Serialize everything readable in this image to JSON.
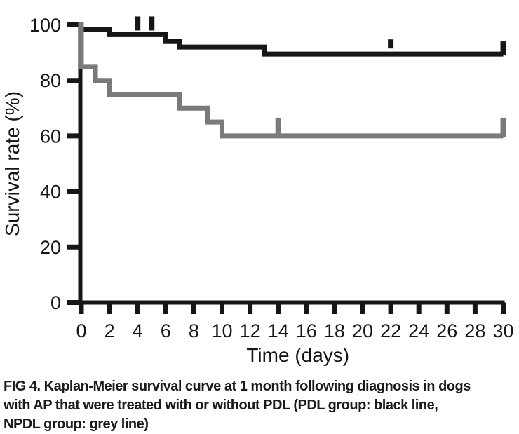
{
  "figure": {
    "caption_lines": [
      "FIG 4. Kaplan-Meier survival curve at 1 month following diagnosis in dogs",
      "with AP that were treated with or without PDL (PDL group: black line,",
      "NPDL group: grey line)"
    ]
  },
  "chart_data": {
    "type": "line",
    "variant": "kaplan_meier_step",
    "title": "",
    "xlabel": "Time (days)",
    "ylabel": "Survival rate (%)",
    "xlim": [
      0,
      30
    ],
    "ylim": [
      0,
      100
    ],
    "xticks": [
      0,
      2,
      4,
      6,
      8,
      10,
      12,
      14,
      16,
      18,
      20,
      22,
      24,
      26,
      28,
      30
    ],
    "yticks": [
      0,
      20,
      40,
      60,
      80,
      100
    ],
    "grid": false,
    "legend_position": "none (groups identified in caption)",
    "axis_color": "#161616",
    "series": [
      {
        "name": "PDL group",
        "slug": "pdl",
        "color": "#161616",
        "line_style": "step-post",
        "steps": [
          [
            0,
            100
          ],
          [
            2,
            98.5
          ],
          [
            6,
            96.5
          ],
          [
            7,
            94
          ],
          [
            13,
            92
          ],
          [
            22,
            89.5
          ],
          [
            30,
            89.5
          ]
        ],
        "censor_marks": [
          {
            "day": 4,
            "level": 98.5,
            "h": 18
          },
          {
            "day": 5,
            "level": 98.5,
            "h": 18
          },
          {
            "day": 22,
            "level": 92,
            "h": 11
          },
          {
            "day": 30,
            "level": 89.5,
            "h": 18
          }
        ]
      },
      {
        "name": "NPDL group",
        "slug": "npdl",
        "color": "#7a7a7a",
        "line_style": "step-post",
        "steps": [
          [
            0,
            100
          ],
          [
            1,
            85
          ],
          [
            2,
            80
          ],
          [
            7,
            75
          ],
          [
            9,
            70
          ],
          [
            10,
            65
          ],
          [
            12,
            60
          ],
          [
            30,
            60
          ]
        ],
        "censor_marks": [
          {
            "day": 14,
            "level": 60,
            "h": 26
          },
          {
            "day": 30,
            "level": 60,
            "h": 26
          }
        ]
      }
    ]
  }
}
